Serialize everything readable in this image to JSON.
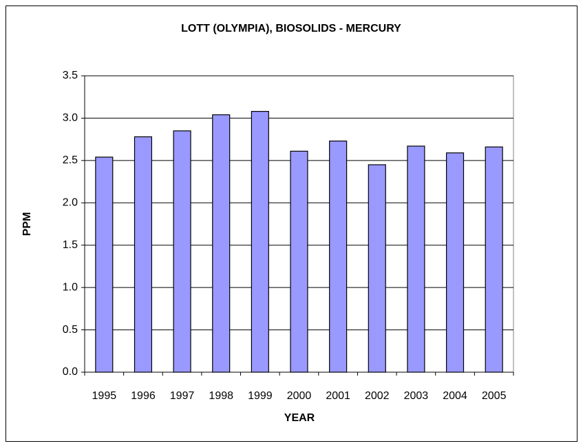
{
  "chart_data": {
    "type": "bar",
    "title": "LOTT (OLYMPIA), BIOSOLIDS - MERCURY",
    "x_label": "YEAR",
    "y_label": "PPM",
    "categories": [
      "1995",
      "1996",
      "1997",
      "1998",
      "1999",
      "2000",
      "2001",
      "2002",
      "2003",
      "2004",
      "2005"
    ],
    "values": [
      2.54,
      2.78,
      2.85,
      3.04,
      3.08,
      2.61,
      2.73,
      2.45,
      2.67,
      2.59,
      2.66
    ],
    "color": "#9999ff",
    "ylim": [
      0,
      3.5
    ],
    "yticks": [
      {
        "value": 0,
        "label": "0.0"
      },
      0.5,
      {
        "value": 1,
        "label": "1.0"
      },
      1.5,
      {
        "value": 2,
        "label": "2.0"
      },
      2.5,
      {
        "value": 3,
        "label": "3.0"
      },
      3.5
    ],
    "grid": true
  }
}
